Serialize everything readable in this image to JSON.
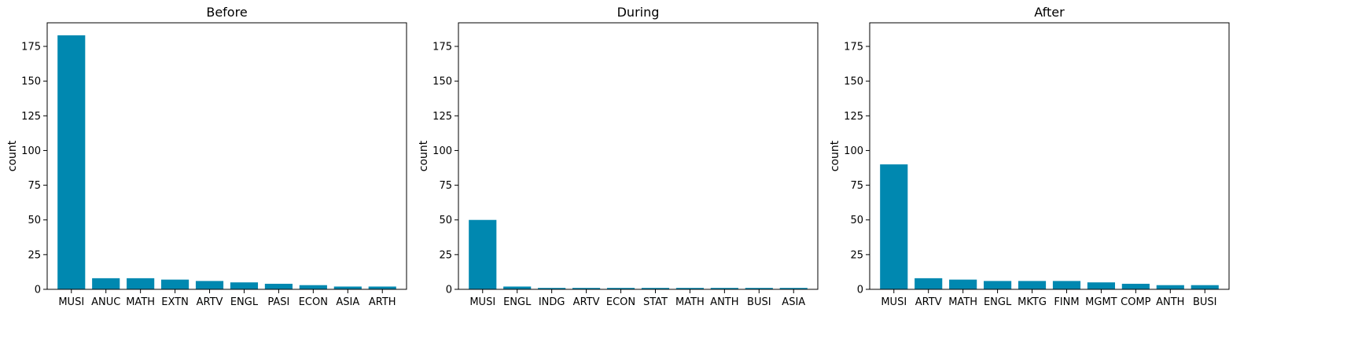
{
  "chart_data": [
    {
      "type": "bar",
      "title": "Before",
      "xlabel": "",
      "ylabel": "count",
      "ylim": [
        0,
        192
      ],
      "yticks": [
        0,
        25,
        50,
        75,
        100,
        125,
        150,
        175
      ],
      "categories": [
        "MUSI",
        "ANUC",
        "MATH",
        "EXTN",
        "ARTV",
        "ENGL",
        "PASI",
        "ECON",
        "ASIA",
        "ARTH"
      ],
      "values": [
        183,
        8,
        8,
        7,
        6,
        5,
        4,
        3,
        2,
        2
      ],
      "bar_color": "#0088b0",
      "grid": false
    },
    {
      "type": "bar",
      "title": "During",
      "xlabel": "",
      "ylabel": "count",
      "ylim": [
        0,
        192
      ],
      "yticks": [
        0,
        25,
        50,
        75,
        100,
        125,
        150,
        175
      ],
      "categories": [
        "MUSI",
        "ENGL",
        "INDG",
        "ARTV",
        "ECON",
        "STAT",
        "MATH",
        "ANTH",
        "BUSI",
        "ASIA"
      ],
      "values": [
        50,
        2,
        1,
        1,
        1,
        1,
        1,
        1,
        1,
        1
      ],
      "bar_color": "#0088b0",
      "grid": false
    },
    {
      "type": "bar",
      "title": "After",
      "xlabel": "",
      "ylabel": "count",
      "ylim": [
        0,
        192
      ],
      "yticks": [
        0,
        25,
        50,
        75,
        100,
        125,
        150,
        175
      ],
      "categories": [
        "MUSI",
        "ARTV",
        "MATH",
        "ENGL",
        "MKTG",
        "FINM",
        "MGMT",
        "COMP",
        "ANTH",
        "BUSI"
      ],
      "values": [
        90,
        8,
        7,
        6,
        6,
        6,
        5,
        4,
        3,
        3
      ],
      "bar_color": "#0088b0",
      "grid": false
    }
  ]
}
